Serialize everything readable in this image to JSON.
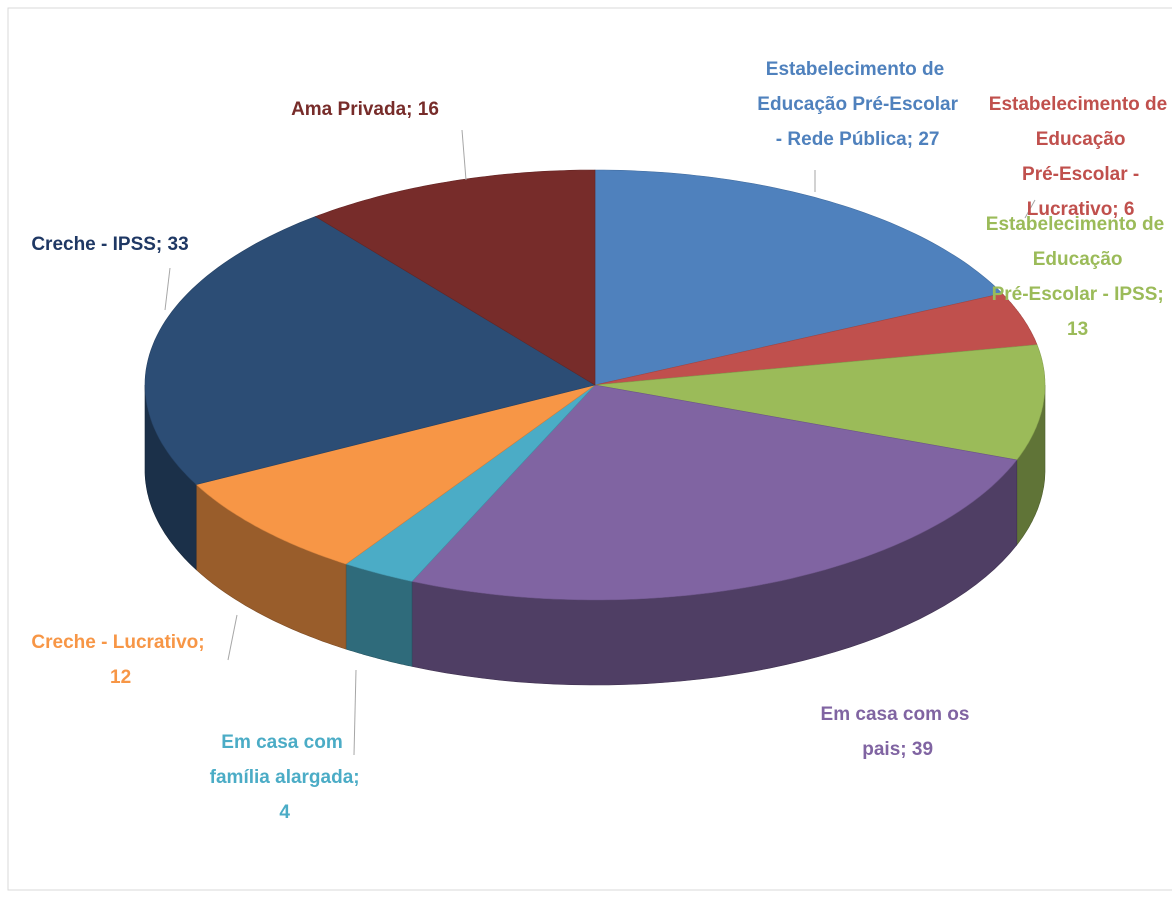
{
  "chart_data": {
    "type": "pie",
    "three_d": true,
    "categories": [
      "Estabelecimento de Educação Pré-Escolar - Rede Pública",
      "Estabelecimento de Educação Pré-Escolar - Lucrativo",
      "Estabelecimento de Educação Pré-Escolar - IPSS",
      "Em casa com os pais",
      "Em casa com família alargada",
      "Creche - Lucrativo",
      "Creche - IPSS",
      "Ama Privada"
    ],
    "values": [
      27,
      6,
      13,
      39,
      4,
      12,
      33,
      16
    ],
    "value_labels": [
      "Estabelecimento de Educação Pré-Escolar - Rede Pública; 27",
      "Estabelecimento de Educação Pré-Escolar - Lucrativo; 6",
      "Estabelecimento de Educação Pré-Escolar - IPSS; 13",
      "Em casa com os pais; 39",
      "Em casa com família alargada; 4",
      "Creche - Lucrativo; 12",
      "Creche - IPSS; 33",
      "Ama Privada; 16"
    ],
    "colors": [
      "#4f81bd",
      "#c0504d",
      "#9bbb59",
      "#8064a2",
      "#4bacc6",
      "#f79646",
      "#2c4d75",
      "#772c2a"
    ],
    "label_colors": [
      "#4f81bd",
      "#c0504d",
      "#9bbb59",
      "#8064a2",
      "#4bacc6",
      "#f79646",
      "#1f3864",
      "#772c2a"
    ]
  }
}
